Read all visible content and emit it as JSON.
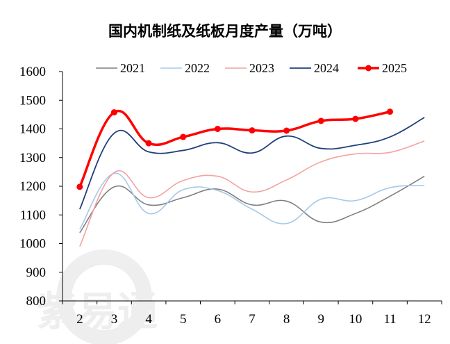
{
  "chart_data": {
    "type": "line",
    "title": "国内机制纸及纸板月度产量（万吨）",
    "categories": [
      "2",
      "3",
      "4",
      "5",
      "6",
      "7",
      "8",
      "9",
      "10",
      "11",
      "12"
    ],
    "ylim": [
      800,
      1600
    ],
    "yticks": [
      800,
      900,
      1000,
      1100,
      1200,
      1300,
      1400,
      1500,
      1600
    ],
    "grid": false,
    "legend_position": "top",
    "series": [
      {
        "name": "2021",
        "color": "#7f7f7f",
        "width": 1.6,
        "markers": false,
        "values": [
          1038,
          1198,
          1135,
          1160,
          1190,
          1135,
          1148,
          1075,
          1105,
          1165,
          1235
        ]
      },
      {
        "name": "2022",
        "color": "#a8c8ea",
        "width": 1.6,
        "markers": false,
        "values": [
          1050,
          1245,
          1105,
          1188,
          1185,
          1120,
          1070,
          1155,
          1150,
          1195,
          1203
        ]
      },
      {
        "name": "2023",
        "color": "#f4a1a1",
        "width": 1.6,
        "markers": false,
        "values": [
          990,
          1248,
          1160,
          1220,
          1235,
          1180,
          1222,
          1285,
          1313,
          1318,
          1358
        ]
      },
      {
        "name": "2024",
        "color": "#1f3f7a",
        "width": 1.8,
        "markers": false,
        "values": [
          1120,
          1385,
          1320,
          1325,
          1352,
          1316,
          1375,
          1332,
          1343,
          1372,
          1440
        ]
      },
      {
        "name": "2025",
        "color": "#ff0000",
        "width": 3.5,
        "markers": true,
        "values": [
          1198,
          1458,
          1350,
          1372,
          1400,
          1395,
          1394,
          1428,
          1435,
          1460,
          null
        ]
      }
    ]
  },
  "watermark": {
    "text": "紫易通"
  }
}
